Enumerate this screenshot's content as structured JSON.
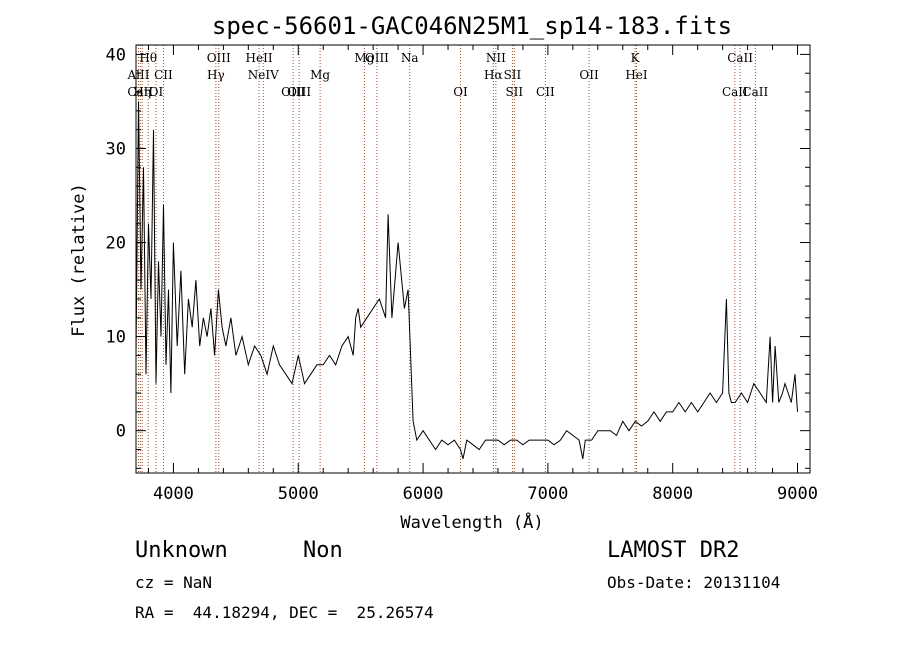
{
  "chart_data": {
    "type": "line",
    "title": "spec-56601-GAC046N25M1_sp14-183.fits",
    "xlabel": "Wavelength (Å)",
    "ylabel": "Flux (relative)",
    "xlim": [
      3700,
      9100
    ],
    "ylim": [
      -4.5,
      41
    ],
    "xticks": [
      4000,
      5000,
      6000,
      7000,
      8000,
      9000
    ],
    "yticks": [
      0,
      10,
      20,
      30,
      40
    ],
    "line_color": "#000000",
    "marker_color": "#a0522d",
    "series": [
      {
        "x": [
          3700,
          3720,
          3740,
          3760,
          3780,
          3800,
          3820,
          3840,
          3860,
          3880,
          3900,
          3920,
          3940,
          3960,
          3980,
          4000,
          4030,
          4060,
          4090,
          4120,
          4150,
          4180,
          4210,
          4240,
          4270,
          4300,
          4330,
          4360,
          4390,
          4420,
          4460,
          4500,
          4550,
          4600,
          4650,
          4700,
          4750,
          4800,
          4850,
          4900,
          4950,
          5000,
          5050,
          5100,
          5150,
          5200,
          5250,
          5300,
          5350,
          5400,
          5440,
          5460,
          5480,
          5500,
          5550,
          5600,
          5650,
          5700,
          5720,
          5750,
          5800,
          5850,
          5880,
          5900,
          5920,
          5950,
          6000,
          6050,
          6100,
          6150,
          6200,
          6250,
          6300,
          6320,
          6350,
          6400,
          6450,
          6500,
          6550,
          6600,
          6650,
          6700,
          6750,
          6800,
          6850,
          6900,
          6950,
          7000,
          7050,
          7100,
          7150,
          7200,
          7250,
          7280,
          7300,
          7350,
          7400,
          7450,
          7500,
          7550,
          7600,
          7650,
          7700,
          7750,
          7800,
          7850,
          7900,
          7950,
          8000,
          8050,
          8100,
          8150,
          8200,
          8250,
          8300,
          8350,
          8400,
          8430,
          8450,
          8470,
          8500,
          8550,
          8600,
          8650,
          8700,
          8750,
          8780,
          8800,
          8820,
          8850,
          8880,
          8900,
          8950,
          8980,
          9000
        ],
        "y": [
          8,
          35,
          15,
          28,
          6,
          22,
          14,
          32,
          5,
          18,
          10,
          24,
          7,
          15,
          4,
          20,
          9,
          17,
          6,
          14,
          11,
          16,
          9,
          12,
          10,
          13,
          8,
          15,
          11,
          9,
          12,
          8,
          10,
          7,
          9,
          8,
          6,
          9,
          7,
          6,
          5,
          8,
          5,
          6,
          7,
          7,
          8,
          7,
          9,
          10,
          8,
          12,
          13,
          11,
          12,
          13,
          14,
          12,
          23,
          12,
          20,
          13,
          15,
          8,
          1,
          -1,
          0,
          -1,
          -2,
          -1,
          -1.5,
          -1,
          -2,
          -3,
          -1,
          -1.5,
          -2,
          -1,
          -1,
          -1,
          -1.5,
          -1,
          -1,
          -1.5,
          -1,
          -1,
          -1,
          -1,
          -1.5,
          -1,
          0,
          -0.5,
          -1,
          -3,
          -1,
          -1,
          0,
          0,
          0,
          -0.5,
          1,
          0,
          1,
          0.5,
          1,
          2,
          1,
          2,
          2,
          3,
          2,
          3,
          2,
          3,
          4,
          3,
          4,
          14,
          4,
          3,
          3,
          4,
          3,
          5,
          4,
          3,
          10,
          3,
          9,
          3,
          4,
          5,
          3,
          6,
          2
        ]
      }
    ],
    "lines": [
      {
        "name": "Hθ",
        "x": 3798,
        "row": 1
      },
      {
        "name": "AlII",
        "x": 3720,
        "row": 2
      },
      {
        "name": "CaII",
        "x": 3734,
        "row": 3
      },
      {
        "name": "Hη",
        "x": 3750,
        "row": 3
      },
      {
        "name": "OI",
        "x": 3860,
        "row": 3
      },
      {
        "name": "CII",
        "x": 3920,
        "row": 2
      },
      {
        "name": "OIII",
        "x": 4363,
        "row": 1
      },
      {
        "name": "Hγ",
        "x": 4340,
        "row": 2
      },
      {
        "name": "HeII",
        "x": 4686,
        "row": 1
      },
      {
        "name": "NeIV",
        "x": 4720,
        "row": 2
      },
      {
        "name": "OIII",
        "x": 4959,
        "row": 3
      },
      {
        "name": "OIII",
        "x": 5007,
        "row": 3
      },
      {
        "name": "Mg",
        "x": 5175,
        "row": 2
      },
      {
        "name": "Mg",
        "x": 5530,
        "row": 1
      },
      {
        "name": "OIII",
        "x": 5630,
        "row": 1
      },
      {
        "name": "Na",
        "x": 5893,
        "row": 1
      },
      {
        "name": "OI",
        "x": 6300,
        "row": 3
      },
      {
        "name": "NII",
        "x": 6583,
        "row": 1
      },
      {
        "name": "Hα",
        "x": 6563,
        "row": 2
      },
      {
        "name": "SII",
        "x": 6716,
        "row": 2
      },
      {
        "name": "SII",
        "x": 6731,
        "row": 3
      },
      {
        "name": "CII",
        "x": 6980,
        "row": 3
      },
      {
        "name": "OII",
        "x": 7330,
        "row": 2
      },
      {
        "name": "K",
        "x": 7699,
        "row": 1
      },
      {
        "name": "HeI",
        "x": 7710,
        "row": 2
      },
      {
        "name": "CaII",
        "x": 8540,
        "row": 1
      },
      {
        "name": "CaII",
        "x": 8498,
        "row": 3
      },
      {
        "name": "CaII",
        "x": 8662,
        "row": 3
      }
    ]
  },
  "info": {
    "class_label": "Unknown",
    "subclass_label": "Non",
    "survey": "LAMOST DR2",
    "cz": "cz = NaN",
    "obs_date": "Obs-Date: 20131104",
    "radec": "RA =  44.18294, DEC =  25.26574"
  }
}
